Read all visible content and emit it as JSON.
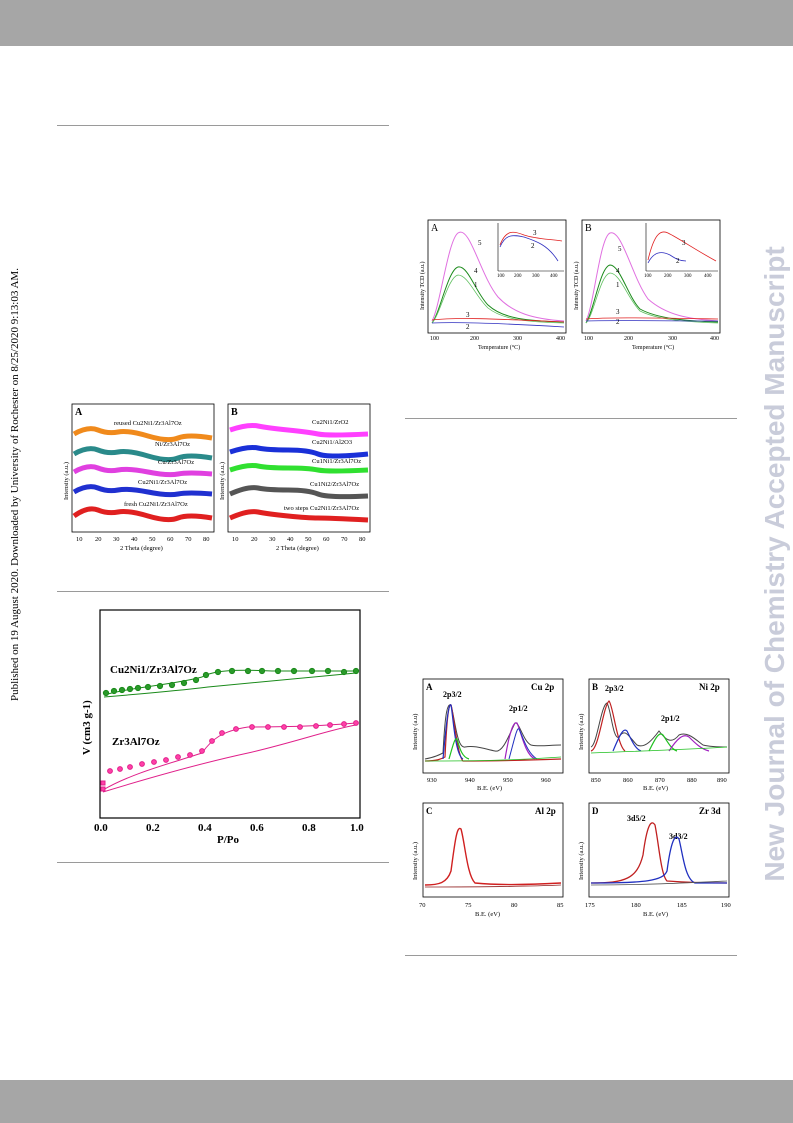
{
  "page": {
    "side_note": "Published on 19 August 2020. Downloaded by University of Rochester on 8/25/2020 9:13:03 AM.",
    "watermark": "New Journal of Chemistry Accepted Manuscript"
  },
  "figures": {
    "tpd": {
      "panels": [
        "A",
        "B"
      ],
      "ylabel": "Intensity TCD (a.u.)",
      "xlabel": "Temperature (°C)",
      "xticks": [
        "100",
        "200",
        "300",
        "400"
      ],
      "A_curve_labels": [
        "5",
        "4",
        "1",
        "3",
        "2"
      ],
      "A_inset_labels": [
        "3",
        "2"
      ],
      "B_curve_labels": [
        "5",
        "4",
        "1",
        "3",
        "2"
      ],
      "B_inset_labels": [
        "3",
        "2"
      ]
    },
    "xrd": {
      "panels": [
        "A",
        "B"
      ],
      "ylabel": "Intensity (a.u.)",
      "xlabel": "2 Theta (degree)",
      "xticks": [
        "10",
        "20",
        "30",
        "40",
        "50",
        "60",
        "70",
        "80"
      ],
      "A_labels": [
        "reused Cu2Ni1/Zr3Al7Oz",
        "Ni/Zr3Al7Oz",
        "Cu/Zr3Al7Oz",
        "Cu2Ni1/Zr3Al7Oz",
        "fresh Cu2Ni1/Zr3Al7Oz"
      ],
      "B_labels": [
        "Cu2Ni1/ZrO2",
        "Cu2Ni1/Al2O3",
        "Cu1Ni1/Zr3Al7Oz",
        "Cu1Ni2/Zr3Al7Oz",
        "two steps Cu2Ni1/Zr3Al7Oz"
      ],
      "A_colors": [
        "#f08a1c",
        "#2a8a8a",
        "#e040e0",
        "#2030d0",
        "#e02020"
      ],
      "B_colors": [
        "#ff40ff",
        "#1a30d8",
        "#30e030",
        "#555555",
        "#e02020"
      ]
    },
    "bet": {
      "ylabel": "V (cm3 g-1)",
      "xlabel": "P/Po",
      "xticks": [
        "0.0",
        "0.2",
        "0.4",
        "0.6",
        "0.8",
        "1.0"
      ],
      "series_labels": [
        "Cu2Ni1/Zr3Al7Oz",
        "Zr3Al7Oz"
      ],
      "colors": [
        "#1a8a1a",
        "#e0208a"
      ]
    },
    "xps": {
      "panels": [
        {
          "letter": "A",
          "title": "Cu 2p",
          "peaks": [
            "2p3/2",
            "2p1/2"
          ],
          "xticks": [
            "930",
            "940",
            "950",
            "960"
          ],
          "ylabel": "Intensity (a.u)",
          "xlabel": "B.E. (eV)"
        },
        {
          "letter": "B",
          "title": "Ni 2p",
          "peaks": [
            "2p3/2",
            "2p1/2"
          ],
          "xticks": [
            "850",
            "860",
            "870",
            "880",
            "890"
          ],
          "ylabel": "Intensity (a.u)",
          "xlabel": "B.E. (eV)"
        },
        {
          "letter": "C",
          "title": "Al 2p",
          "peaks": [],
          "xticks": [
            "70",
            "75",
            "80",
            "85"
          ],
          "ylabel": "Intensity (a.u.)",
          "xlabel": "B.E. (eV)"
        },
        {
          "letter": "D",
          "title": "Zr 3d",
          "peaks": [
            "3d5/2",
            "3d3/2"
          ],
          "xticks": [
            "175",
            "180",
            "185",
            "190"
          ],
          "ylabel": "Intensity (a.u.)",
          "xlabel": "B.E. (eV)"
        }
      ]
    }
  }
}
